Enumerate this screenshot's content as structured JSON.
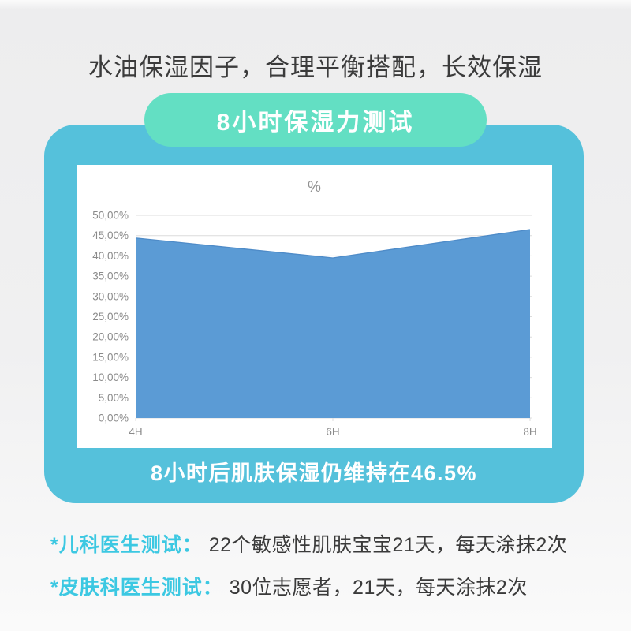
{
  "header": {
    "title": "水油保湿因子，合理平衡搭配，长效保湿",
    "badge": "8小时保湿力测试"
  },
  "card": {
    "caption": "8小时后肌肤保湿仍维持在46.5%"
  },
  "notes": [
    {
      "label": "*儿科医生测试：",
      "text": "22个敏感性肌肤宝宝21天，每天涂抹2次"
    },
    {
      "label": "*皮肤科医生测试：",
      "text": "30位志愿者，21天，每天涂抹2次"
    }
  ],
  "colors": {
    "container_teal": "#55C1DB",
    "badge_mint": "#63DFC3",
    "note_label_cyan": "#3CC8E2",
    "area_blue": "#5B9BD5",
    "area_edge_blue": "#4E8BC8",
    "gridline_gray": "#DCDCDC",
    "axis_text_gray": "#8A8A8A",
    "title_text": "#3B3B3B"
  },
  "chart_data": {
    "type": "area",
    "title": "%",
    "categories": [
      "4H",
      "6H",
      "8H"
    ],
    "values": [
      44.4,
      39.5,
      46.5
    ],
    "ylim": [
      0,
      50
    ],
    "ytick_step": 5,
    "ytick_labels": [
      "0,00%",
      "5,00%",
      "10,00%",
      "15,00%",
      "20,00%",
      "25,00%",
      "30,00%",
      "35,00%",
      "40,00%",
      "45,00%",
      "50,00%"
    ],
    "grid": true,
    "legend": "none",
    "highlight_value": "46.5%"
  }
}
